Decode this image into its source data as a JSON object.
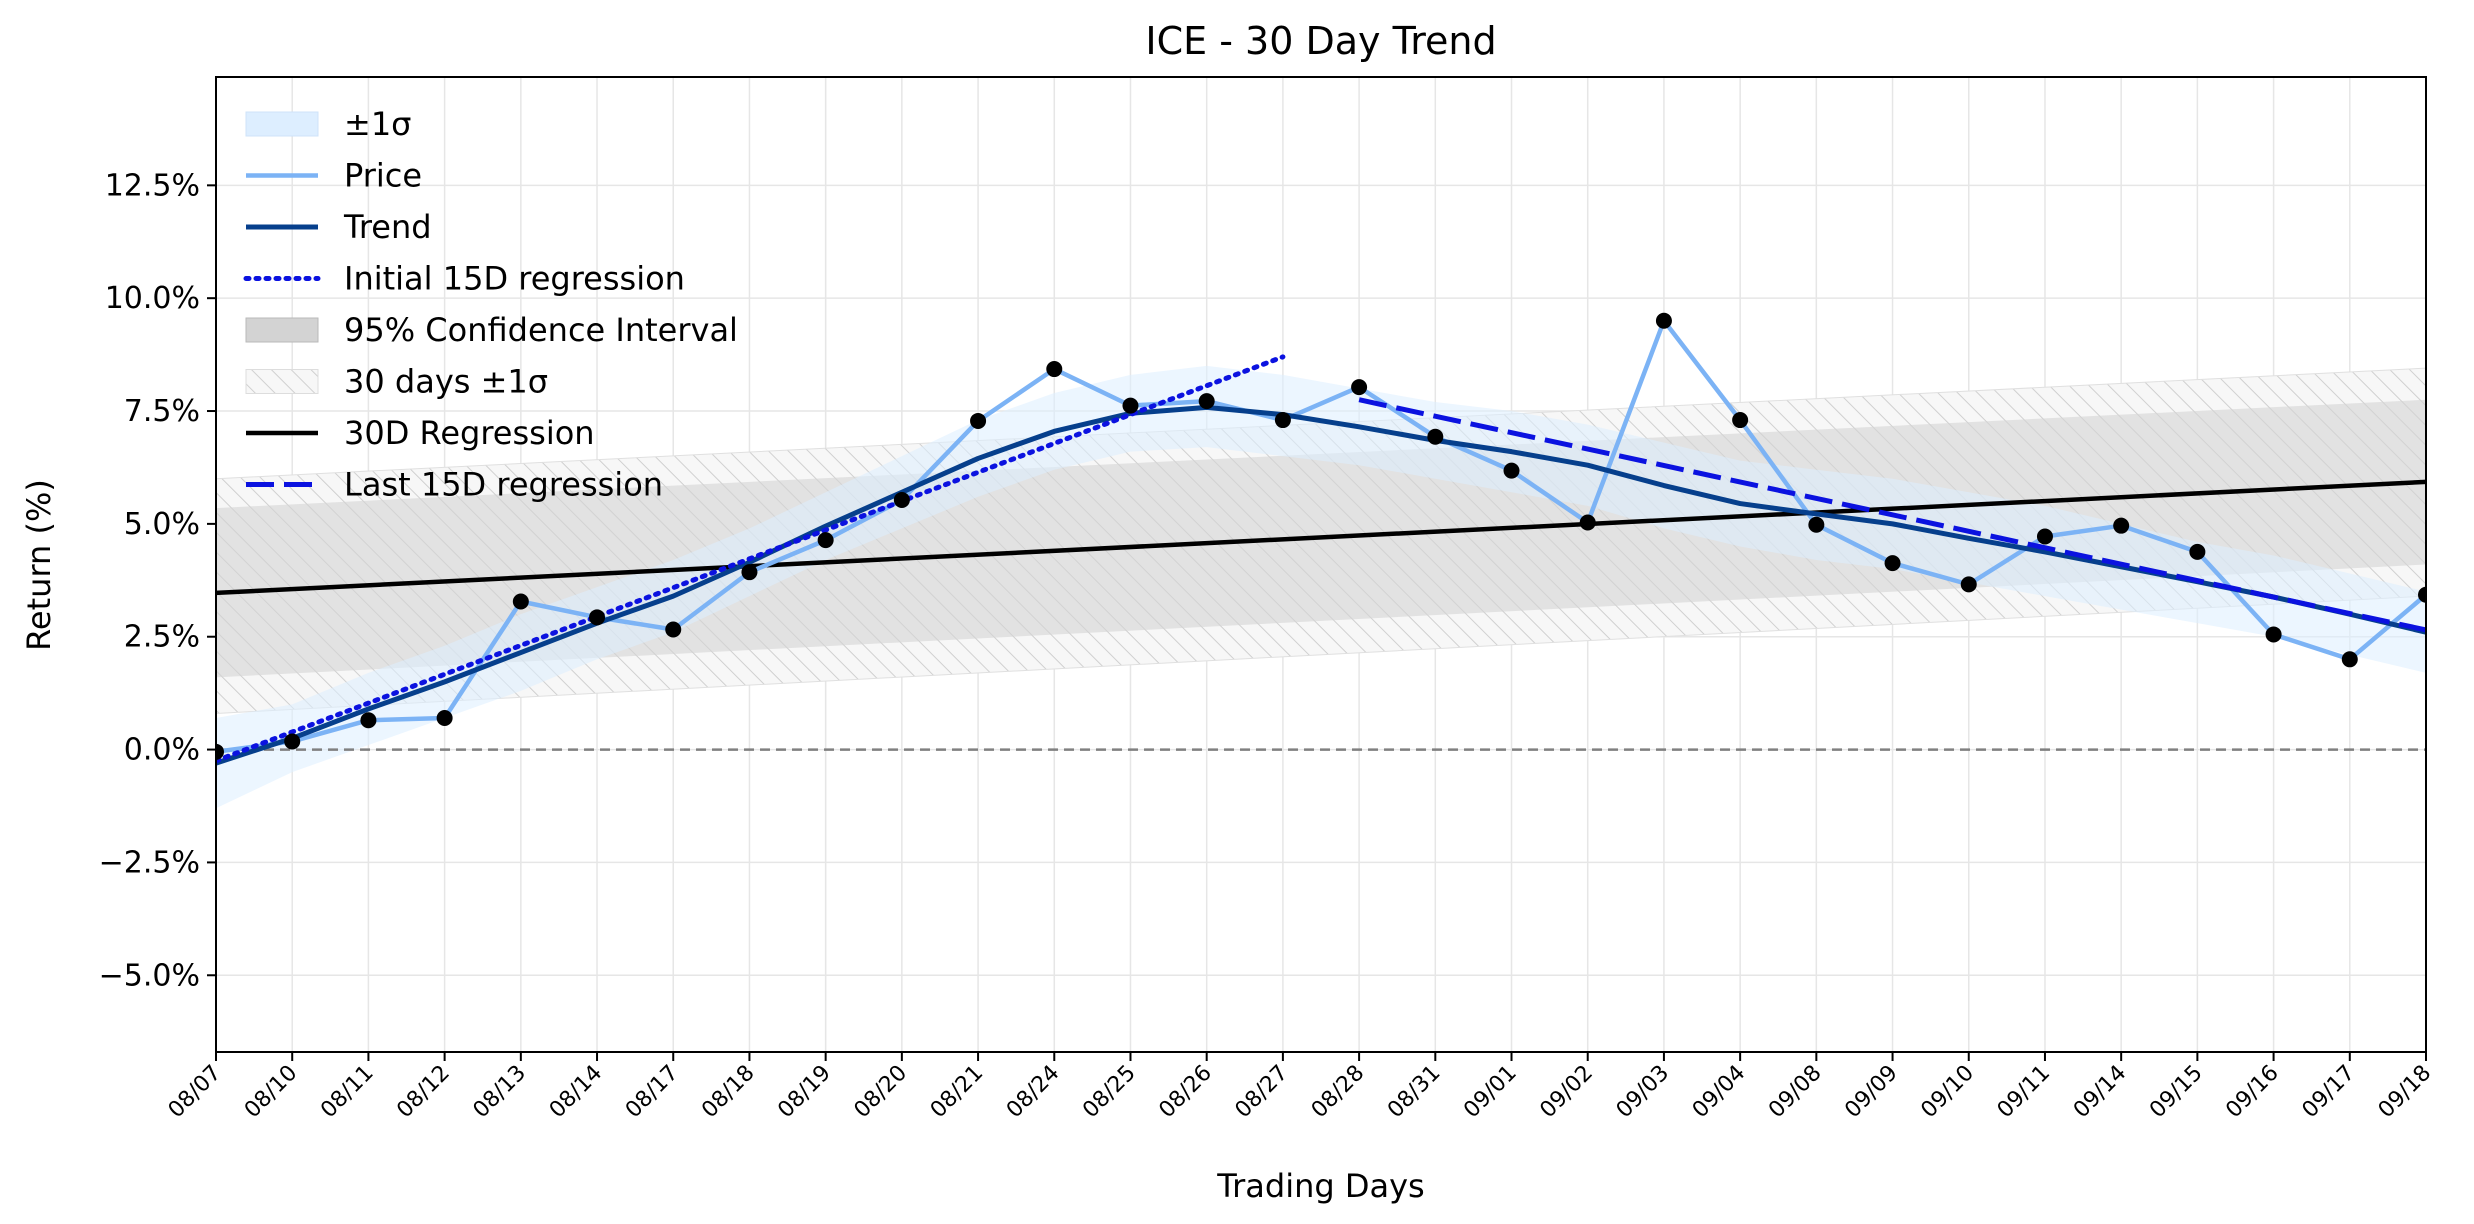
{
  "chart_data": {
    "type": "line",
    "title": "ICE - 30 Day Trend",
    "xlabel": "Trading Days",
    "ylabel": "Return (%)",
    "ylim": [
      -6.7,
      14.9
    ],
    "yticks": [
      -5.0,
      -2.5,
      0.0,
      2.5,
      5.0,
      7.5,
      10.0,
      12.5
    ],
    "ytick_labels": [
      "−5.0%",
      "−2.5%",
      "0.0%",
      "2.5%",
      "5.0%",
      "7.5%",
      "10.0%",
      "12.5%"
    ],
    "grid": true,
    "legend_position": "upper-left",
    "categories": [
      "08/07",
      "08/10",
      "08/11",
      "08/12",
      "08/13",
      "08/14",
      "08/17",
      "08/18",
      "08/19",
      "08/20",
      "08/21",
      "08/24",
      "08/25",
      "08/26",
      "08/27",
      "08/28",
      "08/31",
      "09/01",
      "09/02",
      "09/03",
      "09/04",
      "09/08",
      "09/09",
      "09/10",
      "09/11",
      "09/14",
      "09/15",
      "09/16",
      "09/17",
      "09/18"
    ],
    "price": [
      -0.05,
      0.18,
      0.65,
      0.7,
      3.28,
      2.93,
      2.66,
      3.93,
      4.64,
      5.53,
      7.28,
      8.43,
      7.62,
      7.72,
      7.3,
      8.03,
      6.93,
      6.18,
      5.03,
      9.5,
      7.3,
      4.98,
      4.13,
      3.66,
      4.72,
      4.96,
      4.38,
      2.55,
      2.0,
      3.43
    ],
    "trend": [
      -0.3,
      0.25,
      0.9,
      1.5,
      2.15,
      2.8,
      3.4,
      4.15,
      4.95,
      5.7,
      6.45,
      7.05,
      7.45,
      7.58,
      7.42,
      7.15,
      6.85,
      6.6,
      6.3,
      5.85,
      5.45,
      5.22,
      5.0,
      4.68,
      4.38,
      4.05,
      3.72,
      3.38,
      3.0,
      2.6
    ],
    "sigma_band": {
      "lower": [
        -1.3,
        -0.5,
        0.1,
        0.7,
        1.3,
        2.0,
        2.6,
        3.4,
        4.2,
        4.9,
        5.6,
        6.2,
        6.6,
        6.7,
        6.5,
        6.3,
        6.0,
        5.7,
        5.4,
        4.9,
        4.5,
        4.2,
        4.0,
        3.7,
        3.4,
        3.1,
        2.8,
        2.5,
        2.1,
        1.7
      ],
      "upper": [
        0.7,
        1.0,
        1.7,
        2.3,
        3.0,
        3.6,
        4.2,
        4.9,
        5.7,
        6.5,
        7.3,
        7.9,
        8.3,
        8.5,
        8.3,
        8.0,
        7.7,
        7.5,
        7.2,
        6.8,
        6.4,
        6.2,
        6.0,
        5.7,
        5.4,
        5.0,
        4.6,
        4.3,
        3.9,
        3.5
      ]
    },
    "initial_15d_regression": {
      "x_start": "08/07",
      "x_end": "08/27",
      "y_start": -0.25,
      "y_end": 8.7
    },
    "last_15d_regression": {
      "x_start": "08/28",
      "x_end": "09/18",
      "y_start": 7.75,
      "y_end": 2.65
    },
    "regression_30d": {
      "x_start": "08/07",
      "x_end": "09/18",
      "y_start": 3.47,
      "y_end": 5.93
    },
    "confidence_95": {
      "lower_start": 1.6,
      "lower_end": 4.1,
      "upper_start": 5.35,
      "upper_end": 7.75
    },
    "sigma_30d": {
      "lower_start": 0.8,
      "lower_end": 3.4,
      "upper_start": 6.0,
      "upper_end": 8.45
    },
    "zero_line": 0,
    "colors": {
      "price": "#7cb3f5",
      "trend": "#063f8c",
      "sigma_band": "#ddeeff",
      "initial_regression": "#0b12e0",
      "last_regression": "#0b12e0",
      "regression_30d": "#000000",
      "confidence": "#d3d3d3",
      "markers": "#000000",
      "hatch": "#d0d0d0"
    },
    "legend": [
      "±1σ",
      "Price",
      "Trend",
      "Initial 15D regression",
      "95% Confidence Interval",
      "30 days ±1σ",
      "30D Regression",
      "Last 15D regression"
    ]
  }
}
